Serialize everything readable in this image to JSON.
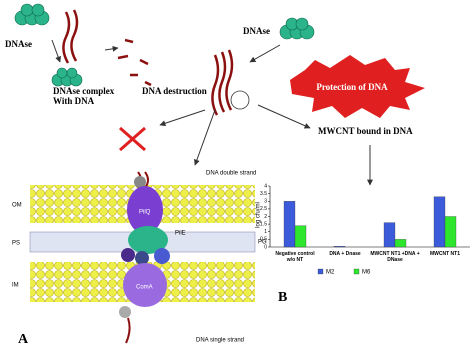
{
  "panel_a": {
    "dnase_left": "DNAse",
    "complex": [
      "DNAse complex",
      "With DNA"
    ],
    "destruction": "DNA destruction",
    "dnase_right": "DNAse",
    "protection": "Protection of DNA",
    "mwcnt": "MWCNT bound in DNA",
    "double_strand": "DNA double strand",
    "single_strand": "DNA single strand",
    "om": "OM",
    "ps": "PS",
    "im": "IM",
    "pilq": "PilQ",
    "pile": "PilE",
    "pg": "PG",
    "coma": "ComA",
    "label": "A"
  },
  "panel_b": {
    "label": "B"
  },
  "chart_data": {
    "type": "bar",
    "y_label": "log cfu/ml",
    "categories": [
      "Negative control w/o NT",
      "DNA + Dnase",
      "MWCNT NT1 +DNA + DNase",
      "MWCNT NT1"
    ],
    "series": [
      {
        "name": "M2",
        "color": "#3b5bdb",
        "values": [
          3.0,
          0.05,
          1.6,
          3.3
        ]
      },
      {
        "name": "M6",
        "color": "#2ee62e",
        "values": [
          1.4,
          0,
          0.5,
          2.0
        ]
      }
    ],
    "ylim": [
      0,
      4
    ],
    "yticks": [
      0,
      0.5,
      1,
      1.5,
      2,
      2.5,
      3,
      3.5,
      4
    ]
  }
}
